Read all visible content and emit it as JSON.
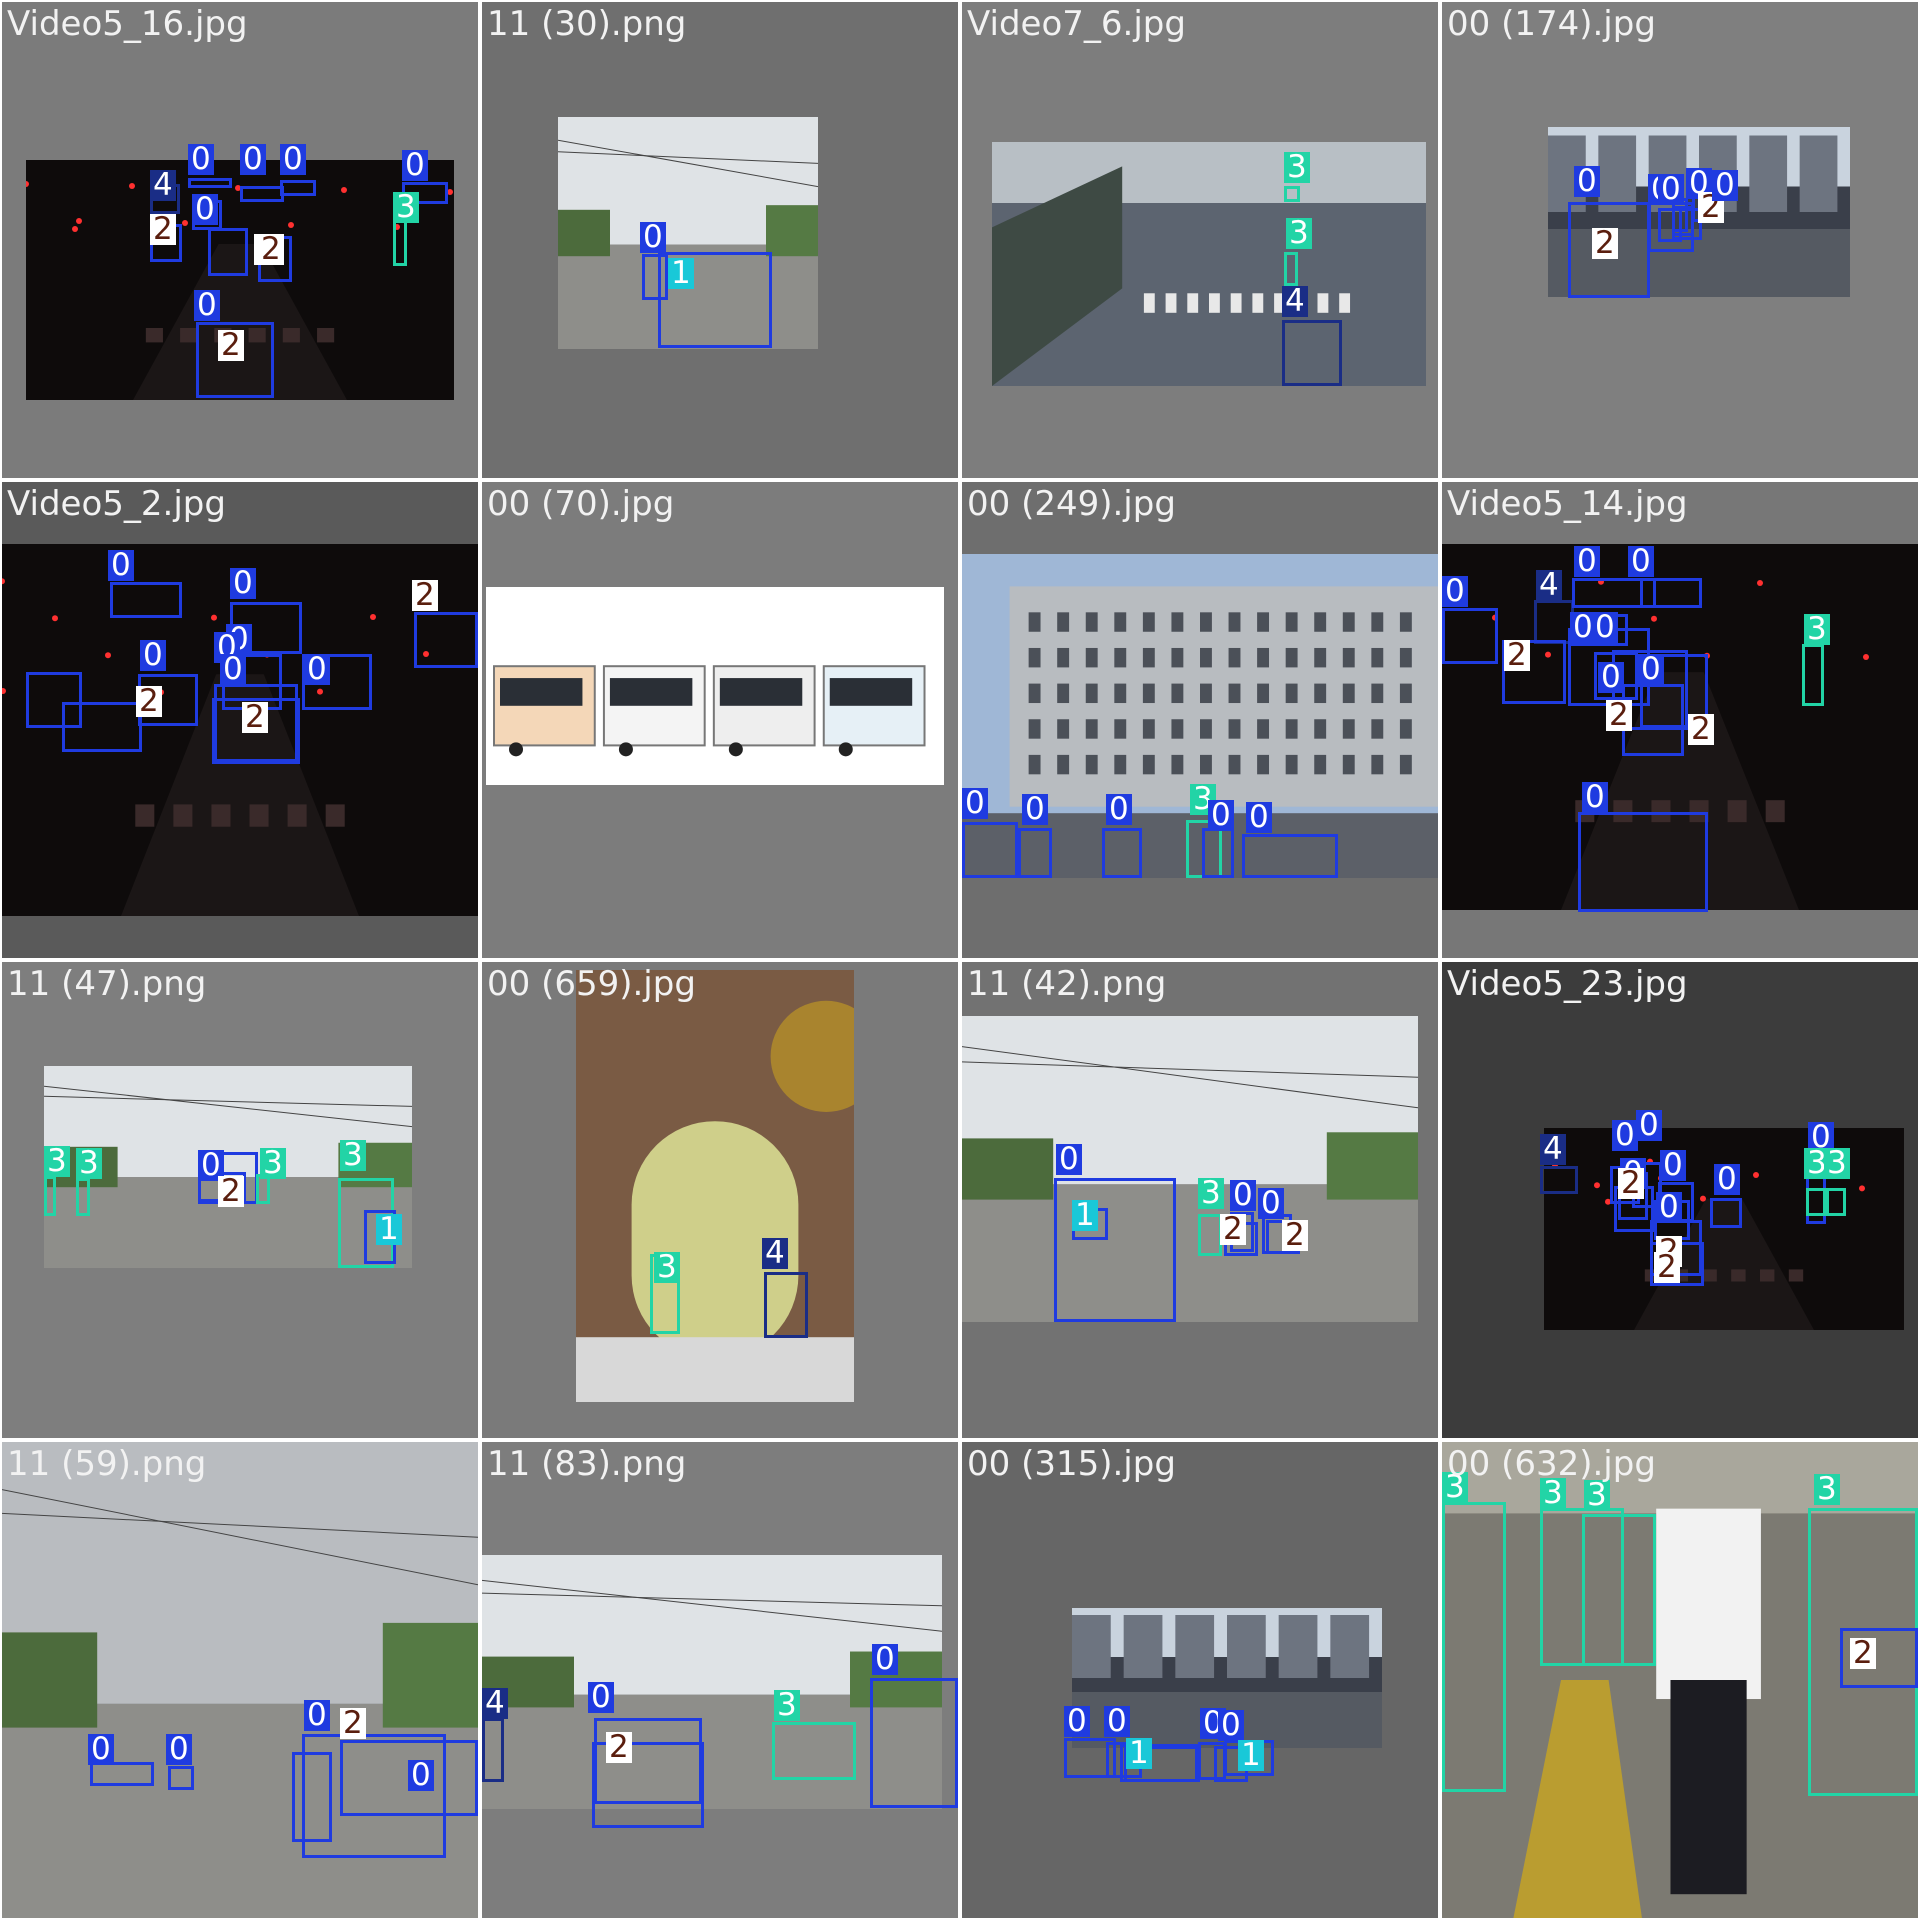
{
  "class_colors": {
    "0": {
      "box": "#1f3be0",
      "tag": "#1f3be0",
      "text": "#ffffff"
    },
    "1": {
      "box": "#1f3be0",
      "tag": "#19c8d8",
      "text": "#ffffff"
    },
    "2": {
      "box": "#1f3be0",
      "tag": "#ffffff",
      "text": "#5a1e0e"
    },
    "3": {
      "box": "#22d4a6",
      "tag": "#22d4a6",
      "text": "#ffffff"
    },
    "4": {
      "box": "#1a2d86",
      "tag": "#1a2d86",
      "text": "#ffffff"
    }
  },
  "tiles": [
    {
      "title": "Video5_16.jpg",
      "bg": "#7b7b7b",
      "scene": "night",
      "detections": [
        {
          "cls": "0",
          "label": "0"
        },
        {
          "cls": "0",
          "label": "0"
        },
        {
          "cls": "0",
          "label": "0"
        },
        {
          "cls": "0",
          "label": "0"
        },
        {
          "cls": "4",
          "label": "4"
        },
        {
          "cls": "0",
          "label": "0"
        },
        {
          "cls": "2",
          "label": "2"
        },
        {
          "cls": "2",
          "label": "2"
        },
        {
          "cls": "2",
          "label": "2"
        },
        {
          "cls": "0",
          "label": "0"
        },
        {
          "cls": "2",
          "label": "2"
        },
        {
          "cls": "3",
          "label": "3"
        }
      ]
    },
    {
      "title": "11 (30).png",
      "bg": "#6f6f6f",
      "scene": "day",
      "detections": [
        {
          "cls": "0",
          "label": "0"
        },
        {
          "cls": "1",
          "label": "1"
        }
      ]
    },
    {
      "title": "Video7_6.jpg",
      "bg": "#7d7d7d",
      "scene": "street",
      "detections": [
        {
          "cls": "3",
          "label": "3"
        },
        {
          "cls": "3",
          "label": "3"
        },
        {
          "cls": "4",
          "label": "4"
        }
      ]
    },
    {
      "title": "00 (174).jpg",
      "bg": "#7f7f7f",
      "scene": "city",
      "detections": [
        {
          "cls": "0",
          "label": "0"
        },
        {
          "cls": "2",
          "label": "2"
        },
        {
          "cls": "0",
          "label": "0"
        },
        {
          "cls": "0",
          "label": "0"
        },
        {
          "cls": "0",
          "label": "0"
        },
        {
          "cls": "2",
          "label": "2"
        },
        {
          "cls": "0",
          "label": "0"
        }
      ]
    },
    {
      "title": "Video5_2.jpg",
      "bg": "#5a5a5a",
      "scene": "night",
      "detections": [
        {
          "cls": "0",
          "label": "0"
        },
        {
          "cls": "0",
          "label": "0"
        },
        {
          "cls": "0",
          "label": "0"
        },
        {
          "cls": "0",
          "label": "0"
        },
        {
          "cls": "0",
          "label": "0"
        },
        {
          "cls": "2",
          "label": "2"
        },
        {
          "cls": "0",
          "label": "0"
        },
        {
          "cls": "2",
          "label": "2"
        },
        {
          "cls": "0",
          "label": "0"
        },
        {
          "cls": "2",
          "label": "2"
        }
      ]
    },
    {
      "title": "00 (70).jpg",
      "bg": "#7c7c7c",
      "scene": "buses",
      "detections": []
    },
    {
      "title": "00 (249).jpg",
      "bg": "#6e6e6e",
      "scene": "building",
      "detections": [
        {
          "cls": "0",
          "label": "0"
        },
        {
          "cls": "0",
          "label": "0"
        },
        {
          "cls": "0",
          "label": "0"
        },
        {
          "cls": "3",
          "label": "3"
        },
        {
          "cls": "0",
          "label": "0"
        },
        {
          "cls": "0",
          "label": "0"
        }
      ]
    },
    {
      "title": "Video5_14.jpg",
      "bg": "#777777",
      "scene": "night",
      "detections": [
        {
          "cls": "0",
          "label": "0"
        },
        {
          "cls": "4",
          "label": "4"
        },
        {
          "cls": "0",
          "label": "0"
        },
        {
          "cls": "0",
          "label": "0"
        },
        {
          "cls": "0",
          "label": "0"
        },
        {
          "cls": "0",
          "label": "0"
        },
        {
          "cls": "2",
          "label": "2"
        },
        {
          "cls": "0",
          "label": "0"
        },
        {
          "cls": "2",
          "label": "2"
        },
        {
          "cls": "0",
          "label": "0"
        },
        {
          "cls": "2",
          "label": "2"
        },
        {
          "cls": "3",
          "label": "3"
        },
        {
          "cls": "0",
          "label": "0"
        }
      ]
    },
    {
      "title": "11 (47).png",
      "bg": "#7e7e7e",
      "scene": "day",
      "detections": [
        {
          "cls": "3",
          "label": "3"
        },
        {
          "cls": "3",
          "label": "3"
        },
        {
          "cls": "0",
          "label": "0"
        },
        {
          "cls": "2",
          "label": "2"
        },
        {
          "cls": "3",
          "label": "3"
        },
        {
          "cls": "3",
          "label": "3"
        },
        {
          "cls": "1",
          "label": "1"
        }
      ]
    },
    {
      "title": "00 (659).jpg",
      "bg": "#7a7a7a",
      "scene": "arch",
      "detections": [
        {
          "cls": "3",
          "label": "3"
        },
        {
          "cls": "4",
          "label": "4"
        }
      ]
    },
    {
      "title": "11 (42).png",
      "bg": "#727272",
      "scene": "day",
      "detections": [
        {
          "cls": "0",
          "label": "0"
        },
        {
          "cls": "1",
          "label": "1"
        },
        {
          "cls": "3",
          "label": "3"
        },
        {
          "cls": "0",
          "label": "0"
        },
        {
          "cls": "2",
          "label": "2"
        },
        {
          "cls": "0",
          "label": "0"
        },
        {
          "cls": "2",
          "label": "2"
        }
      ]
    },
    {
      "title": "Video5_23.jpg",
      "bg": "#3c3c3c",
      "scene": "night",
      "detections": [
        {
          "cls": "4",
          "label": "4"
        },
        {
          "cls": "0",
          "label": "0"
        },
        {
          "cls": "0",
          "label": "0"
        },
        {
          "cls": "0",
          "label": "0"
        },
        {
          "cls": "2",
          "label": "2"
        },
        {
          "cls": "0",
          "label": "0"
        },
        {
          "cls": "0",
          "label": "0"
        },
        {
          "cls": "0",
          "label": "0"
        },
        {
          "cls": "2",
          "label": "2"
        },
        {
          "cls": "2",
          "label": "2"
        },
        {
          "cls": "0",
          "label": "0"
        },
        {
          "cls": "3",
          "label": "3"
        },
        {
          "cls": "3",
          "label": "3"
        }
      ]
    },
    {
      "title": "11 (59).png",
      "bg": "#8a8f95",
      "scene": "rainy",
      "detections": [
        {
          "cls": "0",
          "label": "0"
        },
        {
          "cls": "0",
          "label": "0"
        },
        {
          "cls": "0",
          "label": "0"
        },
        {
          "cls": "2",
          "label": "2"
        },
        {
          "cls": "0",
          "label": "0"
        }
      ]
    },
    {
      "title": "11 (83).png",
      "bg": "#7d7d7d",
      "scene": "day",
      "detections": [
        {
          "cls": "4",
          "label": "4"
        },
        {
          "cls": "0",
          "label": "0"
        },
        {
          "cls": "2",
          "label": "2"
        },
        {
          "cls": "3",
          "label": "3"
        },
        {
          "cls": "0",
          "label": "0"
        }
      ]
    },
    {
      "title": "00 (315).jpg",
      "bg": "#666666",
      "scene": "city",
      "detections": [
        {
          "cls": "0",
          "label": "0"
        },
        {
          "cls": "0",
          "label": "0"
        },
        {
          "cls": "0",
          "label": "0"
        },
        {
          "cls": "1",
          "label": "1"
        },
        {
          "cls": "0",
          "label": "0"
        },
        {
          "cls": "0",
          "label": "0"
        },
        {
          "cls": "1",
          "label": "1"
        }
      ]
    },
    {
      "title": "00 (632).jpg",
      "bg": "#8e8e86",
      "scene": "traffic",
      "detections": [
        {
          "cls": "3",
          "label": "3"
        },
        {
          "cls": "3",
          "label": "3"
        },
        {
          "cls": "3",
          "label": "3"
        },
        {
          "cls": "3",
          "label": "3"
        },
        {
          "cls": "2",
          "label": "2"
        }
      ]
    }
  ]
}
